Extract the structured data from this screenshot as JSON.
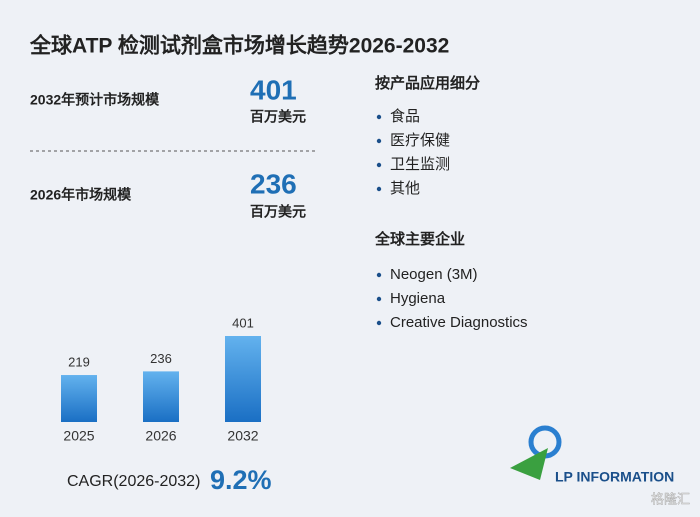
{
  "title": "全球ATP 检测试剂盒市场增长趋势2026-2032",
  "stats": [
    {
      "label": "2032年预计市场规模",
      "value": "401",
      "unit": "百万美元"
    },
    {
      "label": "2026年市场规模",
      "value": "236",
      "unit": "百万美元"
    }
  ],
  "segments": {
    "title": "按产品应用细分",
    "items": [
      "食品",
      "医疗保健",
      "卫生监测",
      "其他"
    ]
  },
  "companies": {
    "title": "全球主要企业",
    "items": [
      "Neogen (3M)",
      "Hygiena",
      "Creative Diagnostics"
    ]
  },
  "cagr": {
    "label": "CAGR(2026-2032)",
    "value": "9.2%"
  },
  "logo": "LP INFORMATION",
  "watermark": "格隆汇",
  "chart_data": {
    "type": "bar",
    "categories": [
      "2025",
      "2026",
      "2032"
    ],
    "values": [
      219,
      236,
      401
    ],
    "color": "#2a7fd0"
  }
}
